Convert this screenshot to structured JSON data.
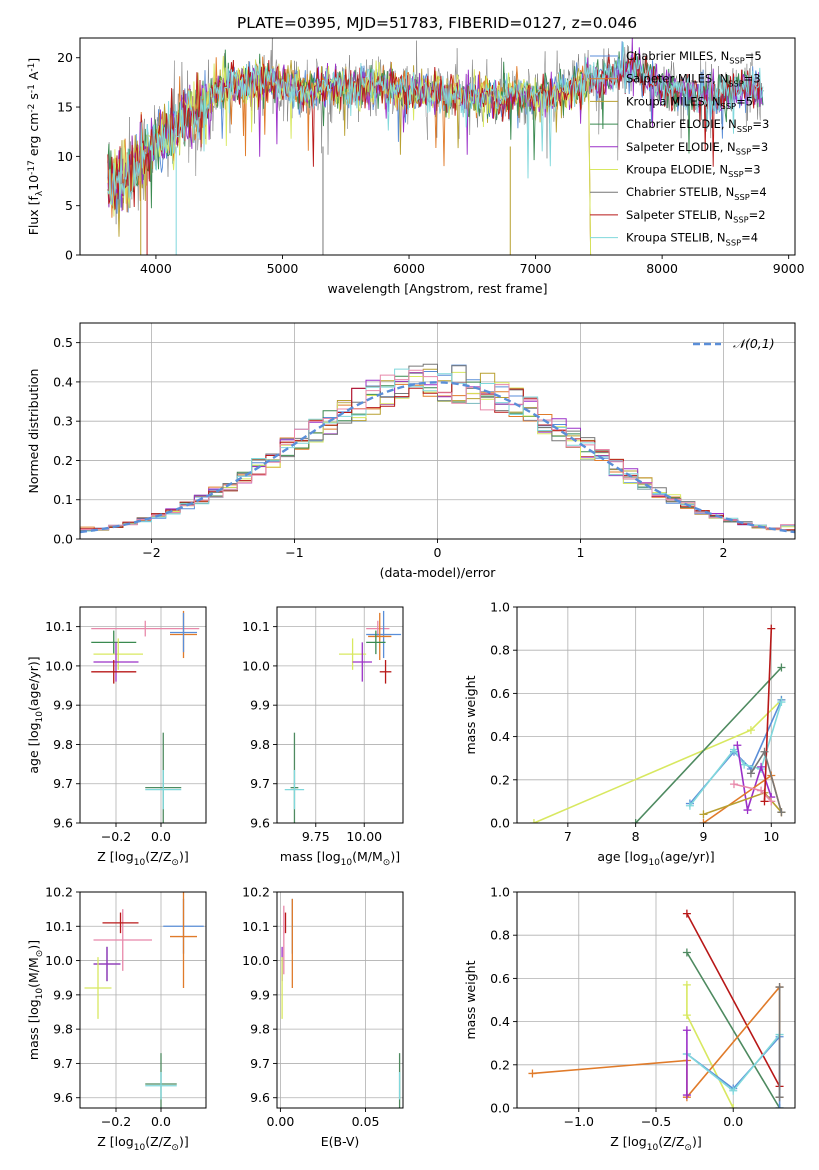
{
  "figure": {
    "title": "PLATE=0395, MJD=51783, FIBERID=0127, z=0.046"
  },
  "palette": {
    "c_blue": "#5a8ed8",
    "c_orange": "#e07b2a",
    "c_olive": "#b8a030",
    "c_green": "#3a8a50",
    "c_purple": "#9b30c8",
    "c_yellow": "#d8e860",
    "c_gray": "#777777",
    "c_red": "#b81818",
    "c_cyan": "#80d8dc",
    "c_pink": "#e888aa",
    "c_dgreen": "#4e8a60"
  },
  "chart_data": [
    {
      "id": "spectrum",
      "type": "line",
      "xlabel": "wavelength [Angstrom, rest frame]",
      "ylabel": "Flux [f$_\\lambda$10$^{-17}$ erg cm$^{-2}$ s$^{-1}$ A$^{-1}$]",
      "xlim": [
        3400,
        9050
      ],
      "ylim": [
        0,
        22
      ],
      "xticks": [
        4000,
        5000,
        6000,
        7000,
        8000,
        9000
      ],
      "yticks": [
        0,
        5,
        10,
        15,
        20
      ],
      "grid": false,
      "legend_position": "right",
      "series": [
        {
          "name": "Chabrier MILES, N$_{SSP}$=5",
          "color_key": "c_blue"
        },
        {
          "name": "Salpeter MILES, N$_{SSP}$=3",
          "color_key": "c_orange"
        },
        {
          "name": "Kroupa MILES, N$_{SSP}$=5",
          "color_key": "c_olive"
        },
        {
          "name": "Chabrier ELODIE, N$_{SSP}$=3",
          "color_key": "c_green"
        },
        {
          "name": "Salpeter ELODIE, N$_{SSP}$=3",
          "color_key": "c_purple"
        },
        {
          "name": "Kroupa ELODIE, N$_{SSP}$=3",
          "color_key": "c_yellow"
        },
        {
          "name": "Chabrier STELIB, N$_{SSP}$=4",
          "color_key": "c_gray"
        },
        {
          "name": "Salpeter STELIB, N$_{SSP}$=2",
          "color_key": "c_red"
        },
        {
          "name": "Kroupa STELIB, N$_{SSP}$=4",
          "color_key": "c_cyan"
        }
      ],
      "continuum": [
        [
          3620,
          8.0
        ],
        [
          3700,
          7.0
        ],
        [
          3800,
          9.0
        ],
        [
          3900,
          10.0
        ],
        [
          4000,
          11.5
        ],
        [
          4100,
          12.5
        ],
        [
          4200,
          13.5
        ],
        [
          4300,
          14.0
        ],
        [
          4400,
          15.5
        ],
        [
          4500,
          17.0
        ],
        [
          4600,
          17.0
        ],
        [
          4800,
          17.5
        ],
        [
          5000,
          17.5
        ],
        [
          5200,
          16.5
        ],
        [
          5400,
          17.0
        ],
        [
          5600,
          17.0
        ],
        [
          5800,
          17.0
        ],
        [
          6000,
          16.5
        ],
        [
          6200,
          16.5
        ],
        [
          6400,
          16.0
        ],
        [
          6600,
          16.0
        ],
        [
          6800,
          16.0
        ],
        [
          7000,
          16.0
        ],
        [
          7200,
          16.5
        ],
        [
          7400,
          17.5
        ],
        [
          7600,
          18.0
        ],
        [
          7800,
          19.0
        ],
        [
          8000,
          17.0
        ],
        [
          8200,
          16.5
        ],
        [
          8400,
          16.0
        ],
        [
          8600,
          17.0
        ],
        [
          8800,
          16.5
        ]
      ]
    },
    {
      "id": "residual-hist",
      "type": "line",
      "xlabel": "(data-model)/error",
      "ylabel": "Normed distribution",
      "xlim": [
        -2.5,
        2.5
      ],
      "ylim": [
        0,
        0.55
      ],
      "xticks": [
        -2,
        -1,
        0,
        1,
        2
      ],
      "yticks": [
        0.0,
        0.1,
        0.2,
        0.3,
        0.4,
        0.5
      ],
      "grid": true,
      "legend_position": "top-right",
      "legend_label": "$\\mathcal{N}(0,1)$",
      "hist_color_keys": [
        "c_blue",
        "c_orange",
        "c_olive",
        "c_green",
        "c_purple",
        "c_yellow",
        "c_gray",
        "c_red",
        "c_cyan",
        "c_pink"
      ]
    },
    {
      "id": "age-z",
      "type": "scatter",
      "xlabel": "Z [log$_{10}$(Z/Z$_\\odot$)]",
      "ylabel": "age  [log$_{10}$(age/yr)]",
      "xlim": [
        -0.36,
        0.2
      ],
      "ylim": [
        9.6,
        10.15
      ],
      "xticks": [
        -0.2,
        0.0
      ],
      "yticks": [
        9.6,
        9.7,
        9.8,
        9.9,
        10.0,
        10.1
      ],
      "grid": true,
      "points": [
        {
          "color_key": "c_pink",
          "x": -0.07,
          "xerr": 0.24,
          "y": 10.095,
          "yerr": 0.02
        },
        {
          "color_key": "c_green",
          "x": -0.21,
          "xerr": 0.1,
          "y": 10.06,
          "yerr": 0.03
        },
        {
          "color_key": "c_yellow",
          "x": -0.19,
          "xerr": 0.11,
          "y": 10.03,
          "yerr": 0.04
        },
        {
          "color_key": "c_purple",
          "x": -0.2,
          "xerr": 0.1,
          "y": 10.01,
          "yerr": 0.05
        },
        {
          "color_key": "c_red",
          "x": -0.21,
          "xerr": 0.1,
          "y": 9.985,
          "yerr": 0.03
        },
        {
          "color_key": "c_orange",
          "x": 0.1,
          "xerr": 0.06,
          "y": 10.08,
          "yerr": 0.06
        },
        {
          "color_key": "c_blue",
          "x": 0.1,
          "xerr": 0.06,
          "y": 10.085,
          "yerr": 0.05
        },
        {
          "color_key": "c_dgreen",
          "x": 0.01,
          "xerr": 0.08,
          "y": 9.69,
          "yerr": 0.14
        },
        {
          "color_key": "c_cyan",
          "x": 0.01,
          "xerr": 0.08,
          "y": 9.685,
          "yerr": 0.05
        }
      ]
    },
    {
      "id": "age-mass",
      "type": "scatter",
      "xlabel": "mass [log$_{10}$(M/M$_\\odot$)]",
      "ylabel": "",
      "xlim": [
        9.55,
        10.2
      ],
      "ylim": [
        9.6,
        10.15
      ],
      "xticks": [
        9.75,
        10.0
      ],
      "xtick_labels": [
        "9.75",
        "10.00"
      ],
      "yticks": [
        9.6,
        9.7,
        9.8,
        9.9,
        10.0,
        10.1
      ],
      "grid": true,
      "points": [
        {
          "color_key": "c_pink",
          "x": 10.07,
          "xerr": 0.06,
          "y": 10.095,
          "yerr": 0.02
        },
        {
          "color_key": "c_blue",
          "x": 10.1,
          "xerr": 0.09,
          "y": 10.08,
          "yerr": 0.06
        },
        {
          "color_key": "c_orange",
          "x": 10.08,
          "xerr": 0.06,
          "y": 10.075,
          "yerr": 0.06
        },
        {
          "color_key": "c_green",
          "x": 10.06,
          "xerr": 0.05,
          "y": 10.06,
          "yerr": 0.03
        },
        {
          "color_key": "c_yellow",
          "x": 9.94,
          "xerr": 0.07,
          "y": 10.03,
          "yerr": 0.04
        },
        {
          "color_key": "c_purple",
          "x": 9.99,
          "xerr": 0.05,
          "y": 10.01,
          "yerr": 0.05
        },
        {
          "color_key": "c_red",
          "x": 10.11,
          "xerr": 0.03,
          "y": 9.985,
          "yerr": 0.03
        },
        {
          "color_key": "c_dgreen",
          "x": 9.64,
          "xerr": 0.02,
          "y": 9.69,
          "yerr": 0.14
        },
        {
          "color_key": "c_cyan",
          "x": 9.64,
          "xerr": 0.05,
          "y": 9.685,
          "yerr": 0.05
        }
      ]
    },
    {
      "id": "mw-age",
      "type": "line",
      "xlabel": "age  [log$_{10}$(age/yr)]",
      "ylabel": "mass weight",
      "xlim": [
        6.25,
        10.35
      ],
      "ylim": [
        0,
        1.0
      ],
      "xticks": [
        7,
        8,
        9,
        10
      ],
      "yticks": [
        0.0,
        0.2,
        0.4,
        0.6,
        0.8,
        1.0
      ],
      "grid": true,
      "series": [
        {
          "color_key": "c_yellow",
          "x": [
            6.5,
            9.7,
            10.15
          ],
          "y": [
            0.0,
            0.43,
            0.57
          ]
        },
        {
          "color_key": "c_dgreen",
          "x": [
            8.0,
            10.15
          ],
          "y": [
            0.0,
            0.72
          ]
        },
        {
          "color_key": "c_blue",
          "x": [
            8.8,
            9.45,
            9.7,
            10.15
          ],
          "y": [
            0.09,
            0.33,
            0.25,
            0.57
          ]
        },
        {
          "color_key": "c_cyan",
          "x": [
            8.8,
            9.45,
            9.6,
            9.85,
            10.15
          ],
          "y": [
            0.08,
            0.34,
            0.27,
            0.25,
            0.56
          ]
        },
        {
          "color_key": "c_purple",
          "x": [
            9.5,
            9.65,
            9.85,
            10.0
          ],
          "y": [
            0.36,
            0.06,
            0.26,
            0.12
          ]
        },
        {
          "color_key": "c_orange",
          "x": [
            9.0,
            10.0,
            10.15
          ],
          "y": [
            0.0,
            0.22,
            0.05
          ]
        },
        {
          "color_key": "c_olive",
          "x": [
            9.0,
            9.9,
            10.15
          ],
          "y": [
            0.04,
            0.14,
            0.05
          ]
        },
        {
          "color_key": "c_pink",
          "x": [
            9.45,
            9.85,
            10.0
          ],
          "y": [
            0.18,
            0.15,
            0.1
          ]
        },
        {
          "color_key": "c_red",
          "x": [
            9.9,
            10.0
          ],
          "y": [
            0.1,
            0.9
          ]
        },
        {
          "color_key": "c_gray",
          "x": [
            9.7,
            9.9,
            10.15
          ],
          "y": [
            0.23,
            0.33,
            0.05
          ]
        }
      ]
    },
    {
      "id": "mass-z",
      "type": "scatter",
      "xlabel": "Z [log$_{10}$(Z/Z$_\\odot$)]",
      "ylabel": "mass [log$_{10}$(M/M$_\\odot$)]",
      "xlim": [
        -0.36,
        0.2
      ],
      "ylim": [
        9.57,
        10.2
      ],
      "xticks": [
        -0.2,
        0.0
      ],
      "yticks": [
        9.6,
        9.7,
        9.8,
        9.9,
        10.0,
        10.1,
        10.2
      ],
      "grid": true,
      "points": [
        {
          "color_key": "c_pink",
          "x": -0.17,
          "xerr": 0.13,
          "y": 10.06,
          "yerr": 0.09
        },
        {
          "color_key": "c_red",
          "x": -0.18,
          "xerr": 0.08,
          "y": 10.11,
          "yerr": 0.03
        },
        {
          "color_key": "c_blue",
          "x": 0.1,
          "xerr": 0.09,
          "y": 10.1,
          "yerr": 0.08
        },
        {
          "color_key": "c_orange",
          "x": 0.1,
          "xerr": 0.06,
          "y": 10.07,
          "yerr": 0.15
        },
        {
          "color_key": "c_green",
          "x": -0.24,
          "xerr": 0.06,
          "y": 9.99,
          "yerr": 0.05
        },
        {
          "color_key": "c_purple",
          "x": -0.24,
          "xerr": 0.06,
          "y": 9.99,
          "yerr": 0.05
        },
        {
          "color_key": "c_yellow",
          "x": -0.28,
          "xerr": 0.06,
          "y": 9.92,
          "yerr": 0.09
        },
        {
          "color_key": "c_dgreen",
          "x": 0.0,
          "xerr": 0.07,
          "y": 9.64,
          "yerr": 0.09
        },
        {
          "color_key": "c_cyan",
          "x": 0.0,
          "xerr": 0.07,
          "y": 9.635,
          "yerr": 0.04
        }
      ]
    },
    {
      "id": "mass-ebv",
      "type": "scatter",
      "xlabel": "E(B-V)",
      "ylabel": "",
      "xlim": [
        -0.002,
        0.072
      ],
      "ylim": [
        9.57,
        10.2
      ],
      "xticks": [
        0.0,
        0.05
      ],
      "xtick_labels": [
        "0.00",
        "0.05"
      ],
      "yticks": [
        9.6,
        9.7,
        9.8,
        9.9,
        10.0,
        10.1,
        10.2
      ],
      "grid": true,
      "points": [
        {
          "color_key": "c_pink",
          "x": 0.002,
          "xerr": 0.0,
          "y": 10.06,
          "yerr": 0.1
        },
        {
          "color_key": "c_red",
          "x": 0.003,
          "xerr": 0.0,
          "y": 10.11,
          "yerr": 0.03
        },
        {
          "color_key": "c_blue",
          "x": 0.007,
          "xerr": 0.0,
          "y": 10.1,
          "yerr": 0.08
        },
        {
          "color_key": "c_orange",
          "x": 0.007,
          "xerr": 0.0,
          "y": 10.05,
          "yerr": 0.13
        },
        {
          "color_key": "c_purple",
          "x": 0.001,
          "xerr": 0.0,
          "y": 9.99,
          "yerr": 0.05
        },
        {
          "color_key": "c_yellow",
          "x": 0.001,
          "xerr": 0.0,
          "y": 9.92,
          "yerr": 0.09
        },
        {
          "color_key": "c_dgreen",
          "x": 0.07,
          "xerr": 0.0,
          "y": 9.64,
          "yerr": 0.09
        },
        {
          "color_key": "c_cyan",
          "x": 0.07,
          "xerr": 0.0,
          "y": 9.635,
          "yerr": 0.04
        }
      ]
    },
    {
      "id": "mw-z",
      "type": "line",
      "xlabel": "Z [log$_{10}$(Z/Z$_\\odot$)]",
      "ylabel": "mass weight",
      "xlim": [
        -1.4,
        0.4
      ],
      "ylim": [
        0,
        1.0
      ],
      "xticks": [
        -1.0,
        -0.5,
        0.0
      ],
      "yticks": [
        0.0,
        0.2,
        0.4,
        0.6,
        0.8,
        1.0
      ],
      "grid": true,
      "series": [
        {
          "color_key": "c_red",
          "x": [
            -0.3,
            0.3
          ],
          "y": [
            0.9,
            0.1
          ]
        },
        {
          "color_key": "c_dgreen",
          "x": [
            -0.3,
            0.3
          ],
          "y": [
            0.72,
            0.0
          ]
        },
        {
          "color_key": "c_yellow",
          "x": [
            -0.3,
            -0.3,
            0.0
          ],
          "y": [
            0.57,
            0.43,
            0.0
          ]
        },
        {
          "color_key": "c_orange",
          "x": [
            -1.3,
            -0.3,
            -0.3,
            0.3,
            0.3
          ],
          "y": [
            0.16,
            0.22,
            0.05,
            0.56,
            0.05
          ]
        },
        {
          "color_key": "c_blue",
          "x": [
            -0.3,
            0.0,
            0.3,
            0.3
          ],
          "y": [
            0.25,
            0.09,
            0.33,
            0.0
          ]
        },
        {
          "color_key": "c_cyan",
          "x": [
            -0.3,
            0.0,
            0.3
          ],
          "y": [
            0.25,
            0.08,
            0.34
          ]
        },
        {
          "color_key": "c_purple",
          "x": [
            -0.3,
            -0.3
          ],
          "y": [
            0.36,
            0.06
          ]
        },
        {
          "color_key": "c_gray",
          "x": [
            0.3,
            0.3
          ],
          "y": [
            0.56,
            0.05
          ]
        }
      ]
    }
  ]
}
